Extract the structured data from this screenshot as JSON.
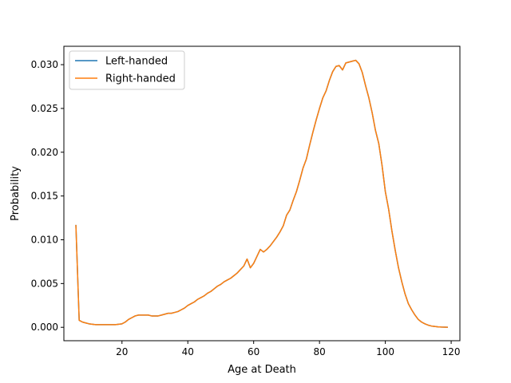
{
  "chart_data": {
    "type": "line",
    "xlabel": "Age at Death",
    "ylabel": "Probability",
    "xlim": [
      2.35,
      122.65
    ],
    "ylim": [
      -0.00153,
      0.0321
    ],
    "x_ticks": [
      20,
      40,
      60,
      80,
      100,
      120
    ],
    "x_tick_labels": [
      "20",
      "40",
      "60",
      "80",
      "100",
      "120"
    ],
    "y_ticks": [
      0.0,
      0.005,
      0.01,
      0.015,
      0.02,
      0.025,
      0.03
    ],
    "y_tick_labels": [
      "0.000",
      "0.005",
      "0.010",
      "0.015",
      "0.020",
      "0.025",
      "0.030"
    ],
    "grid": false,
    "legend_position": "top-left",
    "x": [
      6,
      7,
      8,
      9,
      10,
      11,
      12,
      13,
      14,
      15,
      16,
      17,
      18,
      19,
      20,
      21,
      22,
      23,
      24,
      25,
      26,
      27,
      28,
      29,
      30,
      31,
      32,
      33,
      34,
      35,
      36,
      37,
      38,
      39,
      40,
      41,
      42,
      43,
      44,
      45,
      46,
      47,
      48,
      49,
      50,
      51,
      52,
      53,
      54,
      55,
      56,
      57,
      58,
      59,
      60,
      61,
      62,
      63,
      64,
      65,
      66,
      67,
      68,
      69,
      70,
      71,
      72,
      73,
      74,
      75,
      76,
      77,
      78,
      79,
      80,
      81,
      82,
      83,
      84,
      85,
      86,
      87,
      88,
      89,
      90,
      91,
      92,
      93,
      94,
      95,
      96,
      97,
      98,
      99,
      100,
      101,
      102,
      103,
      104,
      105,
      106,
      107,
      108,
      109,
      110,
      111,
      112,
      113,
      114,
      115,
      116,
      117,
      118,
      119
    ],
    "series": [
      {
        "name": "Left-handed",
        "color": "#1f77b4",
        "values": [
          0.0117,
          0.0008,
          0.0006,
          0.0005,
          0.0004,
          0.00035,
          0.0003,
          0.0003,
          0.0003,
          0.0003,
          0.0003,
          0.0003,
          0.0003,
          0.00035,
          0.0004,
          0.0006,
          0.0009,
          0.0011,
          0.0013,
          0.0014,
          0.0014,
          0.0014,
          0.0014,
          0.0013,
          0.0013,
          0.0013,
          0.0014,
          0.0015,
          0.0016,
          0.0016,
          0.0017,
          0.0018,
          0.002,
          0.0022,
          0.0025,
          0.0027,
          0.0029,
          0.0032,
          0.0034,
          0.0036,
          0.0039,
          0.0041,
          0.0044,
          0.0047,
          0.0049,
          0.0052,
          0.0054,
          0.0056,
          0.0059,
          0.0062,
          0.0066,
          0.007,
          0.0078,
          0.0068,
          0.0073,
          0.0081,
          0.0089,
          0.0086,
          0.0089,
          0.0093,
          0.0098,
          0.0103,
          0.0109,
          0.0116,
          0.0128,
          0.0134,
          0.0145,
          0.0155,
          0.0168,
          0.0182,
          0.0192,
          0.0208,
          0.0223,
          0.0237,
          0.025,
          0.0262,
          0.027,
          0.0282,
          0.0292,
          0.0298,
          0.0299,
          0.0294,
          0.0302,
          0.0303,
          0.0304,
          0.0305,
          0.0301,
          0.0291,
          0.0276,
          0.0262,
          0.0245,
          0.0225,
          0.021,
          0.0185,
          0.0155,
          0.0135,
          0.011,
          0.0088,
          0.0068,
          0.0052,
          0.0038,
          0.0027,
          0.002,
          0.0014,
          0.0009,
          0.0006,
          0.0004,
          0.00025,
          0.00015,
          0.0001,
          5e-05,
          3e-05,
          2e-05,
          1e-05
        ]
      },
      {
        "name": "Right-handed",
        "color": "#ff7f0e",
        "values": [
          0.0117,
          0.0008,
          0.0006,
          0.0005,
          0.0004,
          0.00035,
          0.0003,
          0.0003,
          0.0003,
          0.0003,
          0.0003,
          0.0003,
          0.0003,
          0.00035,
          0.0004,
          0.0006,
          0.0009,
          0.0011,
          0.0013,
          0.0014,
          0.0014,
          0.0014,
          0.0014,
          0.0013,
          0.0013,
          0.0013,
          0.0014,
          0.0015,
          0.0016,
          0.0016,
          0.0017,
          0.0018,
          0.002,
          0.0022,
          0.0025,
          0.0027,
          0.0029,
          0.0032,
          0.0034,
          0.0036,
          0.0039,
          0.0041,
          0.0044,
          0.0047,
          0.0049,
          0.0052,
          0.0054,
          0.0056,
          0.0059,
          0.0062,
          0.0066,
          0.007,
          0.0078,
          0.0068,
          0.0073,
          0.0081,
          0.0089,
          0.0086,
          0.0089,
          0.0093,
          0.0098,
          0.0103,
          0.0109,
          0.0116,
          0.0128,
          0.0134,
          0.0145,
          0.0155,
          0.0168,
          0.0182,
          0.0192,
          0.0208,
          0.0223,
          0.0237,
          0.025,
          0.0262,
          0.027,
          0.0282,
          0.0292,
          0.0298,
          0.0299,
          0.0294,
          0.0302,
          0.0303,
          0.0304,
          0.0305,
          0.0301,
          0.0291,
          0.0276,
          0.0262,
          0.0245,
          0.0225,
          0.021,
          0.0185,
          0.0155,
          0.0135,
          0.011,
          0.0088,
          0.0068,
          0.0052,
          0.0038,
          0.0027,
          0.002,
          0.0014,
          0.0009,
          0.0006,
          0.0004,
          0.00025,
          0.00015,
          0.0001,
          5e-05,
          3e-05,
          2e-05,
          1e-05
        ]
      }
    ]
  }
}
